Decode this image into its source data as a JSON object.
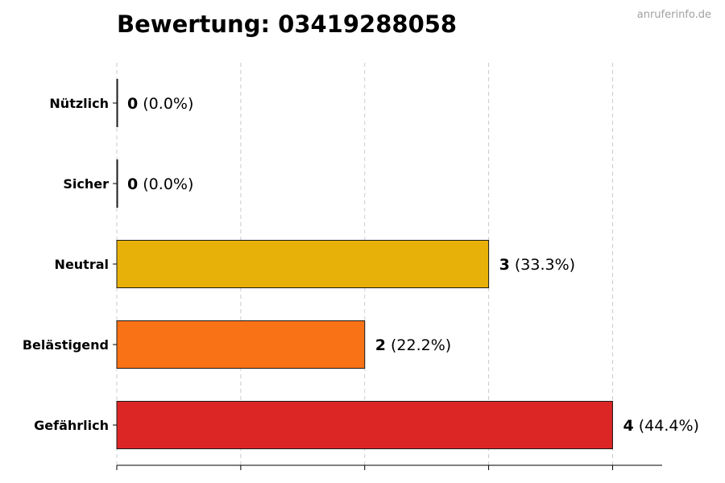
{
  "chart_data": {
    "type": "bar",
    "orientation": "horizontal",
    "title": "Bewertung: 03419288058",
    "categories": [
      "Nützlich",
      "Sicher",
      "Neutral",
      "Belästigend",
      "Gefährlich"
    ],
    "values": [
      0,
      0,
      3,
      2,
      4
    ],
    "percent_labels": [
      "(0.0%)",
      "(0.0%)",
      "(33.3%)",
      "(22.2%)",
      "(44.4%)"
    ],
    "colors": [
      "#3a7d2c",
      "#2f6fb5",
      "#e8b10a",
      "#f97316",
      "#dc2626"
    ],
    "xlim": [
      0,
      4.4
    ],
    "xticks": [
      0,
      1,
      2,
      3,
      4
    ],
    "xlabel": "",
    "ylabel": "",
    "grid": "x-dashed"
  },
  "watermark": "anruferinfo.de"
}
